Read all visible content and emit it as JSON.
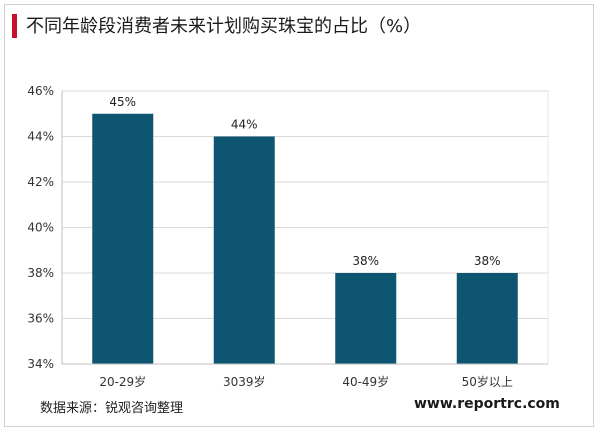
{
  "title": "不同年龄段消费者未来计划购买珠宝的占比（%）",
  "footer": {
    "source": "数据来源：锐观咨询整理",
    "site": "www.reportrc.com"
  },
  "colors": {
    "bar": "#0d5570",
    "accent": "#c8102e",
    "grid": "#d9d9d9"
  },
  "chart_data": {
    "type": "bar",
    "title": "不同年龄段消费者未来计划购买珠宝的占比（%）",
    "categories": [
      "20-29岁",
      "3039岁",
      "40-49岁",
      "50岁以上"
    ],
    "values": [
      45,
      44,
      38,
      38
    ],
    "value_labels": [
      "45%",
      "44%",
      "38%",
      "38%"
    ],
    "ylim": [
      34,
      46
    ],
    "yticks": [
      34,
      36,
      38,
      40,
      42,
      44,
      46
    ],
    "ytick_labels": [
      "34%",
      "36%",
      "38%",
      "40%",
      "42%",
      "44%",
      "46%"
    ],
    "xlabel": "",
    "ylabel": "",
    "grid": true,
    "legend": "none"
  }
}
